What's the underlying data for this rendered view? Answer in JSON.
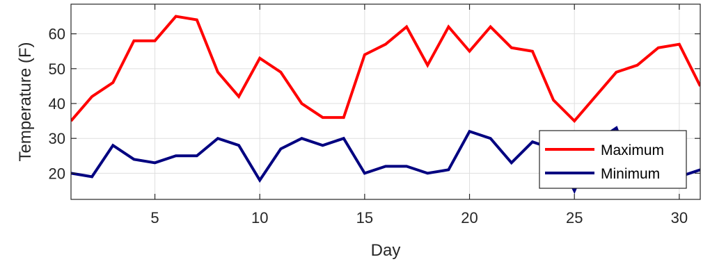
{
  "chart_data": {
    "type": "line",
    "title": "",
    "xlabel": "Day",
    "ylabel": "Temperature (F)",
    "xlim": [
      1,
      31
    ],
    "ylim": [
      12.5,
      68.5
    ],
    "xticks": [
      5,
      10,
      15,
      20,
      25,
      30
    ],
    "yticks": [
      20,
      30,
      40,
      50,
      60
    ],
    "grid": true,
    "legend_position": "lower-right",
    "x": [
      1,
      2,
      3,
      4,
      5,
      6,
      7,
      8,
      9,
      10,
      11,
      12,
      13,
      14,
      15,
      16,
      17,
      18,
      19,
      20,
      21,
      22,
      23,
      24,
      25,
      26,
      27,
      28,
      29,
      30,
      31
    ],
    "series": [
      {
        "name": "Maximum",
        "color": "#ff0000",
        "values": [
          35,
          42,
          46,
          58,
          58,
          65,
          64,
          49,
          42,
          53,
          49,
          40,
          36,
          36,
          54,
          57,
          62,
          51,
          62,
          55,
          62,
          56,
          55,
          41,
          35,
          42,
          49,
          51,
          56,
          57,
          45
        ]
      },
      {
        "name": "Minimum",
        "color": "#000080",
        "values": [
          20,
          19,
          28,
          24,
          23,
          25,
          25,
          30,
          28,
          18,
          27,
          30,
          28,
          30,
          20,
          22,
          22,
          20,
          21,
          32,
          30,
          23,
          29,
          27,
          15,
          29,
          33,
          17,
          19,
          19,
          21
        ]
      }
    ]
  }
}
